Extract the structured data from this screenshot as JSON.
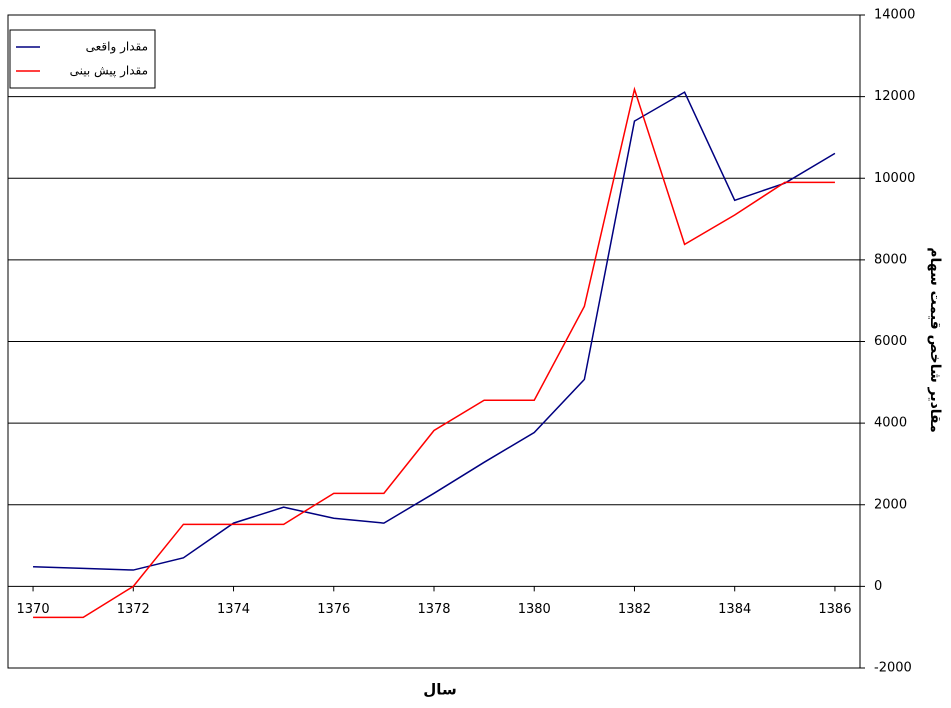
{
  "chart_data": {
    "type": "line",
    "x_label": "سال",
    "y_label": "مقادیر شاخص قیمت سهام",
    "x": [
      1370,
      1371,
      1372,
      1373,
      1374,
      1375,
      1376,
      1377,
      1378,
      1379,
      1380,
      1381,
      1382,
      1383,
      1384,
      1385,
      1386
    ],
    "series": [
      {
        "name": "مقدار واقعی",
        "color": "#000080",
        "values": [
          480,
          440,
          400,
          700,
          1550,
          1940,
          1670,
          1550,
          2280,
          3040,
          3770,
          5070,
          11400,
          12110,
          9460,
          9880,
          10610
        ]
      },
      {
        "name": "مقدار پیش بینی",
        "color": "#ff0000",
        "values": [
          -760,
          -760,
          0,
          1520,
          1520,
          1520,
          2280,
          2280,
          3820,
          4560,
          4560,
          6860,
          12180,
          8380,
          9100,
          9900,
          9900
        ]
      }
    ],
    "xlim": [
      1369.5,
      1386.5
    ],
    "xticks": [
      1370,
      1372,
      1374,
      1376,
      1378,
      1380,
      1382,
      1384,
      1386
    ],
    "ylim": [
      -2000,
      14000
    ],
    "yticks": [
      -2000,
      0,
      2000,
      4000,
      6000,
      8000,
      10000,
      12000,
      14000
    ],
    "grid": true,
    "legend": "top-left"
  }
}
